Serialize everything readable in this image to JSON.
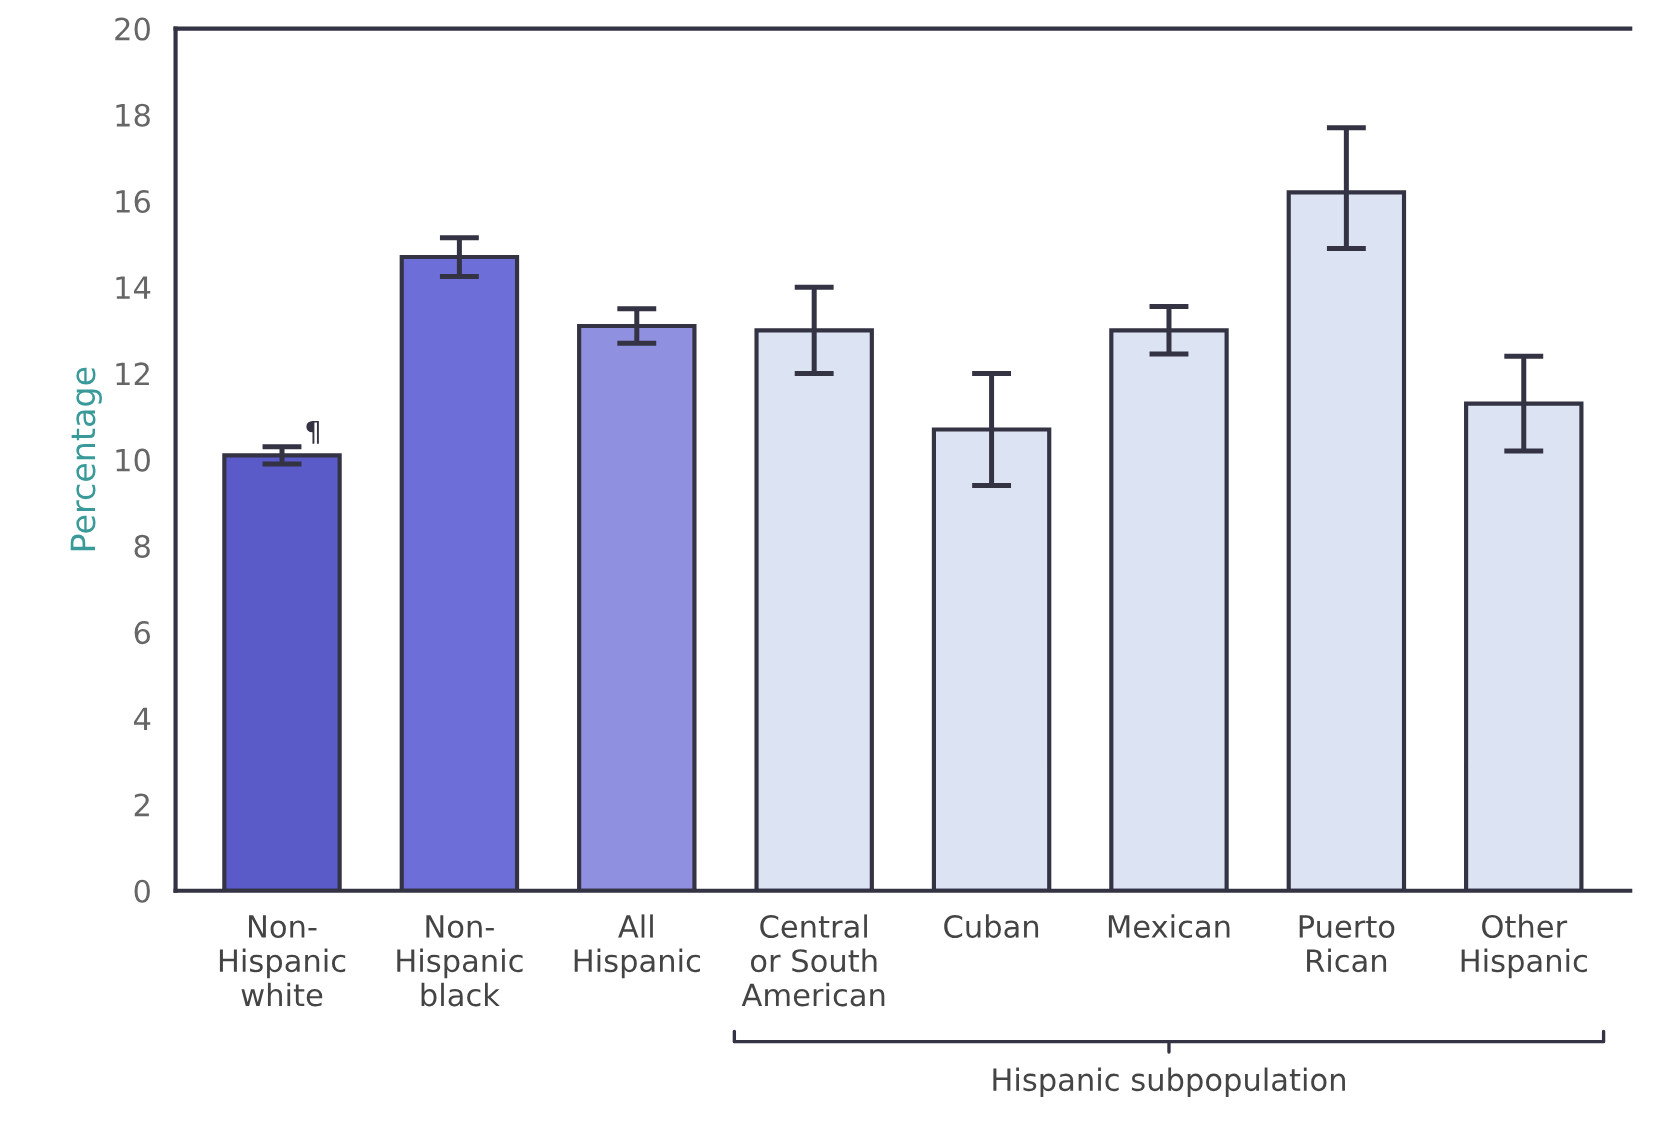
{
  "chart_data": {
    "type": "bar",
    "ylabel": "Percentage",
    "categories": [
      "Non-\nHispanic\nwhite",
      "Non-\nHispanic\nblack",
      "All\nHispanic",
      "Central\nor South\nAmerican",
      "Cuban",
      "Mexican",
      "Puerto\nRican",
      "Other\nHispanic"
    ],
    "values": [
      10.1,
      14.7,
      13.1,
      13.0,
      10.7,
      13.0,
      16.2,
      11.3
    ],
    "errors": [
      0.2,
      0.45,
      0.4,
      1.0,
      1.3,
      0.55,
      [
        14.9,
        17.7
      ],
      1.1
    ],
    "colors": [
      "#5a5ac8",
      "#6e6ed8",
      "#9090e0",
      "#dce4f4",
      "#dce4f4",
      "#dce4f4",
      "#dce4f4",
      "#dce4f4"
    ],
    "ylim": [
      0,
      20
    ],
    "yticks": [
      0,
      2,
      4,
      6,
      8,
      10,
      12,
      14,
      16,
      18,
      20
    ],
    "annotations": [
      {
        "text": "¶",
        "x": "Non-\nHispanic\nwhite",
        "y": 10.3
      },
      "Hispanic subpopulation"
    ]
  }
}
